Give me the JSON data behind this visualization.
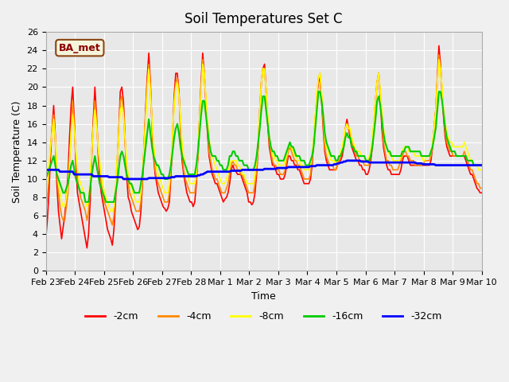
{
  "title": "Soil Temperatures Set C",
  "xlabel": "Time",
  "ylabel": "Soil Temperature (C)",
  "label_box": "BA_met",
  "ylim": [
    0,
    26
  ],
  "yticks": [
    0,
    2,
    4,
    6,
    8,
    10,
    12,
    14,
    16,
    18,
    20,
    22,
    24,
    26
  ],
  "xtick_labels": [
    "Feb 23",
    "Feb 24",
    "Feb 25",
    "Feb 26",
    "Feb 27",
    "Feb 28",
    "Mar 1",
    "Mar 2",
    "Mar 3",
    "Mar 4",
    "Mar 5",
    "Mar 6",
    "Mar 7",
    "Mar 8",
    "Mar 9",
    "Mar 10"
  ],
  "colors": {
    "-2cm": "#ff0000",
    "-4cm": "#ff8800",
    "-8cm": "#ffff00",
    "-16cm": "#00cc00",
    "-32cm": "#0000ff"
  },
  "legend_labels": [
    "-2cm",
    "-4cm",
    "-8cm",
    "-16cm",
    "-32cm"
  ],
  "background_color": "#e8e8e8",
  "grid_color": "#ffffff",
  "t_depth_2": [
    3.5,
    5.5,
    8.5,
    12.5,
    15.5,
    18.0,
    14.8,
    9.5,
    6.5,
    5.0,
    3.5,
    4.8,
    6.0,
    8.0,
    10.5,
    14.5,
    18.0,
    20.0,
    16.5,
    11.5,
    8.5,
    7.5,
    6.5,
    5.5,
    4.5,
    3.5,
    2.5,
    4.0,
    7.5,
    12.5,
    16.5,
    20.0,
    17.0,
    13.0,
    10.0,
    8.5,
    7.5,
    6.5,
    5.5,
    4.5,
    4.0,
    3.5,
    2.8,
    4.5,
    7.5,
    11.5,
    14.8,
    19.5,
    20.0,
    18.5,
    14.5,
    10.5,
    8.0,
    7.5,
    6.5,
    6.0,
    5.5,
    5.0,
    4.5,
    4.8,
    6.5,
    9.5,
    13.5,
    17.5,
    21.0,
    23.7,
    20.5,
    16.0,
    12.5,
    10.5,
    9.5,
    8.5,
    8.0,
    7.5,
    7.0,
    6.8,
    6.5,
    6.8,
    7.5,
    10.5,
    14.5,
    19.0,
    21.5,
    21.5,
    19.5,
    15.5,
    12.0,
    10.5,
    9.5,
    8.5,
    8.0,
    7.5,
    7.5,
    7.0,
    7.5,
    9.5,
    12.5,
    16.5,
    20.5,
    23.7,
    21.5,
    18.5,
    15.0,
    12.5,
    11.5,
    10.5,
    10.0,
    9.5,
    9.5,
    9.0,
    8.5,
    8.0,
    7.5,
    7.8,
    8.0,
    8.5,
    9.5,
    11.0,
    11.5,
    11.0,
    10.8,
    10.5,
    10.5,
    10.5,
    10.0,
    9.5,
    9.0,
    8.5,
    7.5,
    7.5,
    7.2,
    7.5,
    8.5,
    10.5,
    13.5,
    17.5,
    20.5,
    22.0,
    22.5,
    19.5,
    16.0,
    13.5,
    12.5,
    11.5,
    11.5,
    11.0,
    10.5,
    10.5,
    10.0,
    10.0,
    10.0,
    10.5,
    11.5,
    12.5,
    12.5,
    12.0,
    12.0,
    11.5,
    11.5,
    11.0,
    11.0,
    10.5,
    10.0,
    9.5,
    9.5,
    9.5,
    9.5,
    10.0,
    11.5,
    14.0,
    16.5,
    19.0,
    20.5,
    21.0,
    18.5,
    15.5,
    13.0,
    12.0,
    11.5,
    11.0,
    11.0,
    11.0,
    11.0,
    11.0,
    11.5,
    12.0,
    12.0,
    12.5,
    13.5,
    15.5,
    16.5,
    15.5,
    14.5,
    13.5,
    13.0,
    12.5,
    12.0,
    12.0,
    11.5,
    11.5,
    11.0,
    11.0,
    10.5,
    10.5,
    11.0,
    12.0,
    13.5,
    16.0,
    18.5,
    20.5,
    21.5,
    19.0,
    15.5,
    13.5,
    12.5,
    11.5,
    11.0,
    11.0,
    10.5,
    10.5,
    10.5,
    10.5,
    10.5,
    10.5,
    11.0,
    12.0,
    12.5,
    12.5,
    12.5,
    12.0,
    11.5,
    11.5,
    11.5,
    11.5,
    11.5,
    11.5,
    11.5,
    11.5,
    11.5,
    11.5,
    11.5,
    11.5,
    11.5,
    12.0,
    13.5,
    15.5,
    17.5,
    21.0,
    24.5,
    22.5,
    19.5,
    16.5,
    14.5,
    13.5,
    13.0,
    12.5,
    12.5,
    12.5,
    12.5,
    12.5,
    12.5,
    12.5,
    12.5,
    12.5,
    12.5,
    12.0,
    11.5,
    11.0,
    10.5,
    10.5,
    10.0,
    9.5,
    9.0,
    8.8,
    8.5,
    8.5
  ],
  "t_depth_4": [
    6.5,
    8.0,
    10.5,
    13.5,
    15.5,
    17.0,
    14.0,
    10.5,
    8.5,
    7.0,
    6.0,
    5.5,
    5.5,
    7.0,
    8.5,
    12.0,
    15.5,
    18.5,
    16.0,
    12.5,
    10.0,
    9.0,
    8.0,
    7.5,
    7.0,
    6.5,
    5.5,
    6.5,
    9.5,
    13.0,
    16.0,
    18.5,
    16.5,
    13.5,
    11.0,
    9.5,
    8.5,
    7.5,
    7.0,
    6.5,
    6.0,
    5.5,
    5.0,
    6.0,
    8.5,
    12.0,
    15.0,
    18.5,
    19.0,
    17.5,
    14.0,
    11.0,
    9.5,
    8.5,
    8.0,
    7.5,
    7.0,
    6.5,
    6.5,
    6.5,
    7.5,
    10.0,
    13.5,
    17.0,
    20.5,
    22.5,
    20.0,
    16.0,
    13.0,
    11.0,
    10.0,
    9.5,
    9.0,
    8.5,
    8.0,
    7.5,
    7.5,
    7.5,
    8.5,
    11.0,
    14.5,
    18.5,
    20.5,
    21.0,
    19.5,
    16.0,
    13.0,
    11.0,
    10.0,
    9.5,
    9.0,
    8.5,
    8.5,
    8.5,
    8.5,
    10.0,
    12.5,
    16.5,
    20.0,
    23.0,
    21.5,
    18.5,
    15.5,
    13.0,
    12.0,
    11.0,
    10.5,
    10.0,
    10.0,
    9.5,
    9.0,
    8.5,
    8.5,
    8.5,
    9.0,
    9.5,
    10.5,
    11.5,
    12.0,
    11.5,
    11.5,
    11.0,
    11.0,
    10.5,
    10.5,
    10.0,
    9.5,
    9.0,
    8.5,
    8.5,
    8.5,
    8.5,
    9.5,
    11.0,
    13.5,
    17.5,
    20.5,
    22.0,
    22.0,
    19.5,
    16.5,
    14.0,
    13.0,
    12.0,
    11.5,
    11.5,
    11.0,
    11.0,
    10.5,
    10.5,
    10.5,
    11.0,
    12.0,
    13.0,
    13.5,
    13.0,
    12.5,
    12.0,
    12.0,
    11.5,
    11.5,
    11.0,
    10.5,
    10.0,
    10.0,
    10.0,
    10.0,
    10.5,
    12.0,
    14.0,
    16.5,
    19.0,
    21.0,
    21.5,
    19.0,
    16.0,
    13.5,
    12.5,
    12.0,
    11.5,
    11.5,
    11.5,
    11.0,
    11.0,
    11.5,
    12.0,
    12.5,
    13.0,
    14.0,
    15.5,
    16.0,
    15.5,
    15.0,
    14.0,
    13.5,
    13.0,
    12.5,
    12.5,
    12.0,
    12.0,
    12.0,
    11.5,
    11.5,
    11.5,
    11.5,
    12.5,
    13.5,
    16.0,
    18.5,
    20.5,
    21.5,
    19.5,
    16.5,
    14.0,
    13.0,
    12.0,
    12.0,
    11.5,
    11.5,
    11.0,
    11.0,
    11.0,
    11.0,
    11.5,
    12.0,
    12.5,
    13.0,
    13.0,
    12.5,
    12.5,
    12.0,
    12.0,
    12.0,
    11.5,
    11.5,
    11.5,
    11.5,
    11.5,
    11.5,
    12.0,
    12.0,
    12.0,
    12.0,
    12.5,
    13.5,
    15.5,
    17.5,
    20.5,
    23.5,
    22.0,
    19.5,
    17.0,
    15.0,
    14.0,
    13.5,
    13.0,
    13.0,
    12.5,
    12.5,
    12.5,
    12.5,
    12.5,
    12.5,
    12.5,
    13.0,
    12.5,
    12.0,
    11.5,
    11.0,
    11.0,
    10.5,
    10.0,
    9.5,
    9.5,
    9.0,
    9.0
  ],
  "t_depth_8": [
    8.0,
    9.5,
    11.5,
    13.5,
    15.0,
    16.5,
    14.5,
    11.5,
    9.5,
    8.5,
    7.5,
    7.0,
    7.0,
    8.0,
    9.5,
    12.0,
    15.0,
    17.0,
    15.5,
    13.0,
    11.0,
    10.0,
    9.5,
    9.0,
    8.5,
    7.5,
    7.0,
    7.5,
    10.0,
    13.0,
    15.5,
    17.5,
    16.0,
    13.5,
    12.0,
    10.5,
    9.5,
    8.5,
    8.0,
    7.5,
    7.0,
    6.5,
    6.5,
    7.0,
    9.0,
    12.0,
    14.5,
    17.5,
    18.0,
    17.0,
    14.5,
    12.0,
    10.5,
    9.5,
    9.0,
    8.5,
    8.0,
    7.5,
    7.5,
    7.5,
    8.5,
    10.5,
    13.5,
    16.5,
    19.5,
    22.0,
    19.5,
    16.5,
    14.0,
    12.0,
    11.0,
    10.5,
    10.0,
    9.5,
    9.0,
    8.5,
    8.5,
    8.5,
    9.5,
    12.0,
    15.0,
    18.0,
    20.0,
    20.5,
    19.0,
    16.5,
    14.0,
    12.5,
    11.5,
    11.0,
    10.0,
    9.5,
    9.5,
    9.5,
    9.5,
    10.5,
    13.0,
    16.5,
    19.5,
    22.5,
    21.5,
    19.0,
    16.5,
    14.5,
    13.0,
    12.5,
    12.0,
    11.5,
    11.0,
    10.5,
    10.0,
    9.5,
    9.5,
    9.5,
    10.0,
    10.5,
    11.5,
    12.0,
    12.0,
    12.0,
    12.0,
    11.5,
    11.5,
    11.0,
    10.5,
    10.5,
    10.0,
    9.5,
    9.5,
    9.5,
    9.5,
    9.5,
    10.5,
    12.0,
    14.0,
    17.5,
    20.5,
    22.0,
    22.0,
    19.5,
    17.0,
    14.5,
    13.5,
    12.5,
    12.5,
    12.0,
    12.0,
    11.5,
    11.5,
    11.5,
    11.5,
    12.0,
    12.5,
    13.5,
    13.5,
    13.5,
    13.0,
    12.5,
    12.5,
    12.0,
    12.0,
    11.5,
    11.5,
    11.0,
    11.0,
    11.0,
    11.0,
    11.5,
    12.5,
    14.5,
    17.0,
    19.5,
    21.0,
    21.5,
    19.5,
    17.0,
    14.5,
    13.5,
    13.0,
    12.5,
    12.0,
    12.0,
    12.0,
    11.5,
    12.0,
    12.5,
    13.0,
    13.5,
    14.5,
    15.5,
    16.0,
    15.5,
    15.5,
    14.5,
    14.0,
    13.5,
    13.0,
    13.0,
    13.0,
    12.5,
    12.5,
    12.5,
    12.0,
    12.0,
    12.5,
    13.0,
    14.5,
    16.5,
    18.5,
    20.5,
    21.5,
    19.5,
    17.5,
    15.5,
    14.5,
    13.5,
    13.0,
    12.5,
    12.5,
    12.0,
    12.0,
    12.0,
    12.0,
    12.0,
    12.5,
    13.0,
    13.5,
    13.5,
    13.5,
    13.0,
    13.0,
    13.0,
    13.0,
    12.5,
    12.5,
    12.5,
    12.5,
    12.5,
    12.0,
    12.0,
    12.5,
    12.5,
    12.5,
    13.0,
    14.0,
    15.5,
    17.5,
    20.5,
    23.0,
    22.0,
    20.0,
    17.5,
    16.0,
    15.0,
    14.5,
    14.0,
    14.0,
    13.5,
    13.5,
    13.5,
    13.5,
    13.5,
    13.5,
    13.5,
    14.0,
    13.5,
    13.0,
    12.5,
    12.0,
    12.0,
    11.5,
    11.5,
    11.5,
    11.0,
    11.0,
    11.0
  ],
  "t_depth_16": [
    10.0,
    10.5,
    11.0,
    11.5,
    12.0,
    12.5,
    11.5,
    10.5,
    10.0,
    9.5,
    9.0,
    8.5,
    8.5,
    9.0,
    9.5,
    10.5,
    11.5,
    12.0,
    11.0,
    10.0,
    9.5,
    9.0,
    8.5,
    8.5,
    8.5,
    7.5,
    7.5,
    7.5,
    9.0,
    10.5,
    11.5,
    12.5,
    11.5,
    10.5,
    9.5,
    9.0,
    8.5,
    8.0,
    7.5,
    7.5,
    7.5,
    7.5,
    7.5,
    7.5,
    8.5,
    9.5,
    11.0,
    12.5,
    13.0,
    12.5,
    11.5,
    10.5,
    10.0,
    9.5,
    9.5,
    9.0,
    8.5,
    8.5,
    8.5,
    8.5,
    9.5,
    10.5,
    12.0,
    13.5,
    15.0,
    16.5,
    15.0,
    13.5,
    12.5,
    12.0,
    11.5,
    11.5,
    11.0,
    10.5,
    10.5,
    10.0,
    10.0,
    10.0,
    10.5,
    11.5,
    13.0,
    14.5,
    15.5,
    16.0,
    15.0,
    13.5,
    12.5,
    12.0,
    11.5,
    11.0,
    10.5,
    10.5,
    10.5,
    10.5,
    10.5,
    11.5,
    13.0,
    15.0,
    17.0,
    18.5,
    18.5,
    17.0,
    15.5,
    14.0,
    13.0,
    12.5,
    12.5,
    12.5,
    12.0,
    12.0,
    11.5,
    11.5,
    11.0,
    11.0,
    11.0,
    11.5,
    12.5,
    12.5,
    13.0,
    13.0,
    12.5,
    12.5,
    12.0,
    12.0,
    12.0,
    11.5,
    11.5,
    11.5,
    11.0,
    11.0,
    11.0,
    11.0,
    11.5,
    12.5,
    14.0,
    15.5,
    17.5,
    19.0,
    19.0,
    17.5,
    16.0,
    14.5,
    13.5,
    13.0,
    13.0,
    12.5,
    12.5,
    12.0,
    12.0,
    12.0,
    12.0,
    12.5,
    13.0,
    13.5,
    14.0,
    13.5,
    13.5,
    13.0,
    12.5,
    12.5,
    12.5,
    12.0,
    12.0,
    12.0,
    11.5,
    11.5,
    11.5,
    12.0,
    12.5,
    13.5,
    15.5,
    17.5,
    19.5,
    19.5,
    18.5,
    17.0,
    15.0,
    14.0,
    13.5,
    13.0,
    12.5,
    12.5,
    12.5,
    12.0,
    12.0,
    12.5,
    12.5,
    13.0,
    13.5,
    14.5,
    15.0,
    14.5,
    14.5,
    13.5,
    13.5,
    13.0,
    13.0,
    12.5,
    12.5,
    12.5,
    12.5,
    12.5,
    12.0,
    12.0,
    12.0,
    12.5,
    13.5,
    15.0,
    16.5,
    18.5,
    19.0,
    18.0,
    16.5,
    15.0,
    14.0,
    13.5,
    13.0,
    13.0,
    12.5,
    12.5,
    12.5,
    12.5,
    12.5,
    12.5,
    12.5,
    13.0,
    13.0,
    13.5,
    13.5,
    13.5,
    13.0,
    13.0,
    13.0,
    13.0,
    13.0,
    13.0,
    13.0,
    12.5,
    12.5,
    12.5,
    12.5,
    12.5,
    12.5,
    13.0,
    13.5,
    14.5,
    15.5,
    17.5,
    19.5,
    19.5,
    18.5,
    17.0,
    15.5,
    14.5,
    14.0,
    13.5,
    13.0,
    13.0,
    13.0,
    12.5,
    12.5,
    12.5,
    12.5,
    12.5,
    12.5,
    12.5,
    12.0,
    12.0,
    12.0,
    12.0,
    11.5,
    11.5,
    11.5,
    11.5,
    11.5,
    11.5
  ],
  "t_depth_32": [
    11.0,
    11.0,
    11.0,
    11.0,
    11.0,
    11.0,
    11.0,
    11.0,
    11.0,
    10.8,
    10.8,
    10.8,
    10.8,
    10.8,
    10.8,
    10.8,
    10.8,
    10.8,
    10.5,
    10.5,
    10.5,
    10.5,
    10.5,
    10.5,
    10.5,
    10.5,
    10.5,
    10.5,
    10.5,
    10.5,
    10.3,
    10.3,
    10.3,
    10.3,
    10.3,
    10.3,
    10.3,
    10.3,
    10.3,
    10.3,
    10.2,
    10.2,
    10.2,
    10.2,
    10.2,
    10.2,
    10.2,
    10.2,
    10.2,
    10.0,
    10.0,
    10.0,
    10.0,
    10.0,
    10.0,
    10.0,
    10.0,
    10.0,
    10.0,
    10.0,
    10.0,
    10.0,
    10.0,
    10.0,
    10.0,
    10.1,
    10.1,
    10.1,
    10.1,
    10.1,
    10.1,
    10.1,
    10.1,
    10.1,
    10.1,
    10.1,
    10.1,
    10.1,
    10.1,
    10.2,
    10.2,
    10.2,
    10.3,
    10.3,
    10.3,
    10.3,
    10.3,
    10.3,
    10.3,
    10.3,
    10.3,
    10.3,
    10.3,
    10.3,
    10.3,
    10.3,
    10.4,
    10.4,
    10.5,
    10.5,
    10.6,
    10.7,
    10.8,
    10.8,
    10.8,
    10.8,
    10.8,
    10.8,
    10.8,
    10.8,
    10.8,
    10.8,
    10.8,
    10.8,
    10.8,
    10.8,
    10.8,
    10.9,
    10.9,
    10.9,
    10.9,
    10.9,
    10.9,
    10.9,
    11.0,
    11.0,
    11.0,
    11.0,
    11.0,
    11.0,
    11.0,
    11.0,
    11.0,
    11.0,
    11.0,
    11.0,
    11.0,
    11.0,
    11.1,
    11.1,
    11.1,
    11.1,
    11.1,
    11.1,
    11.1,
    11.1,
    11.2,
    11.2,
    11.2,
    11.2,
    11.2,
    11.2,
    11.2,
    11.3,
    11.3,
    11.3,
    11.3,
    11.3,
    11.3,
    11.3,
    11.3,
    11.3,
    11.3,
    11.3,
    11.3,
    11.3,
    11.3,
    11.4,
    11.4,
    11.4,
    11.4,
    11.5,
    11.5,
    11.5,
    11.5,
    11.5,
    11.5,
    11.5,
    11.5,
    11.5,
    11.5,
    11.5,
    11.6,
    11.6,
    11.7,
    11.7,
    11.8,
    11.8,
    11.9,
    11.9,
    12.0,
    12.0,
    12.0,
    12.0,
    12.0,
    12.0,
    12.0,
    12.0,
    12.0,
    11.9,
    11.9,
    11.9,
    11.9,
    11.9,
    11.8,
    11.8,
    11.8,
    11.8,
    11.8,
    11.8,
    11.8,
    11.8,
    11.8,
    11.8,
    11.8,
    11.8,
    11.8,
    11.8,
    11.8,
    11.8,
    11.8,
    11.8,
    11.8,
    11.8,
    11.8,
    11.8,
    11.8,
    11.8,
    11.8,
    11.8,
    11.8,
    11.8,
    11.8,
    11.8,
    11.7,
    11.7,
    11.7,
    11.7,
    11.6,
    11.6,
    11.6,
    11.6,
    11.6,
    11.6,
    11.6,
    11.6,
    11.5,
    11.5,
    11.5,
    11.5,
    11.5,
    11.5,
    11.5,
    11.5,
    11.5,
    11.5,
    11.5,
    11.5,
    11.5,
    11.5,
    11.5,
    11.5,
    11.5,
    11.5,
    11.5,
    11.5,
    11.5,
    11.5,
    11.5,
    11.5,
    11.5,
    11.5,
    11.5,
    11.5,
    11.5,
    11.5
  ]
}
